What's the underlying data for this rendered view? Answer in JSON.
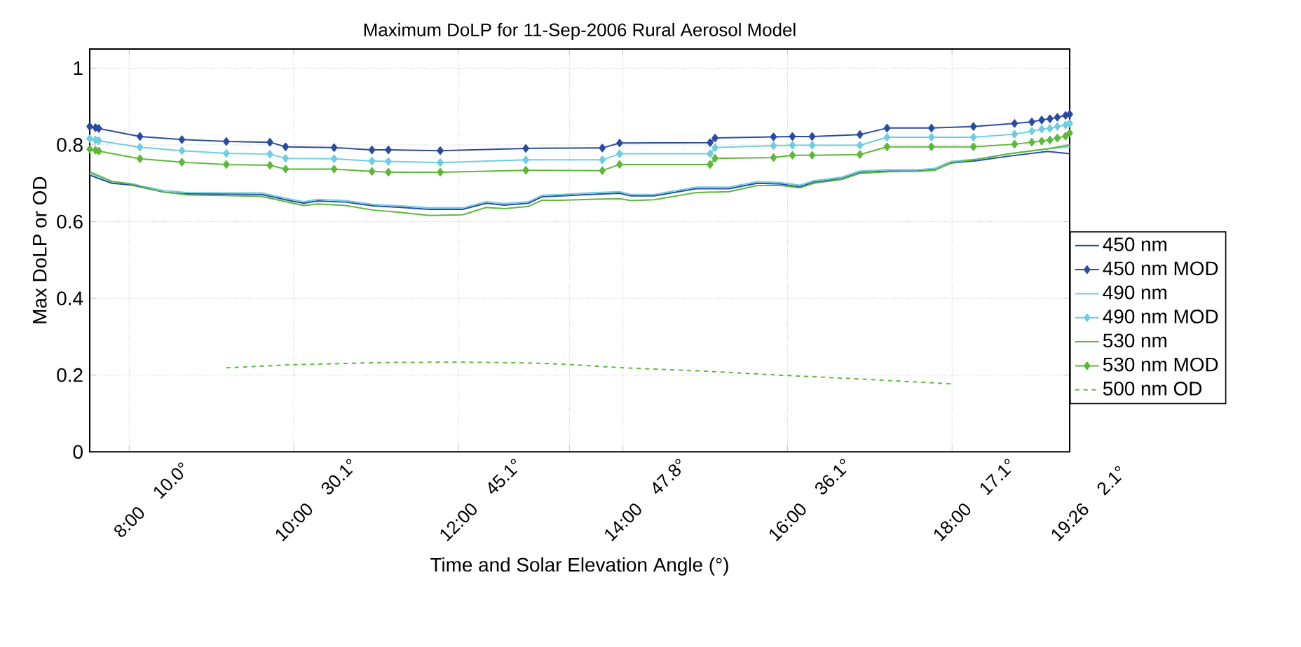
{
  "chart_data": {
    "type": "line",
    "title": "Maximum DoLP for 11-Sep-2006  Rural Aerosol Model",
    "xlabel": "Time and Solar Elevation Angle (°)",
    "ylabel": "Max DoLP or OD",
    "xlim": [
      7.52,
      19.43
    ],
    "ylim": [
      0,
      1.05
    ],
    "xticks": [
      {
        "value": 8,
        "label": "8:00"
      },
      {
        "value": 10,
        "label": "10:00"
      },
      {
        "value": 12,
        "label": "12:00"
      },
      {
        "value": 13.35,
        "label": null
      },
      {
        "value": 14,
        "label": "14:00"
      },
      {
        "value": 16,
        "label": "16:00"
      },
      {
        "value": 18,
        "label": "18:00"
      },
      {
        "value": 19.43,
        "label": "19:26"
      }
    ],
    "annotations": [
      "10.0°",
      "30.1°",
      "45.1°",
      "47.8°",
      "36.1°",
      "17.1°",
      "2.1°"
    ],
    "yticks": [
      0,
      0.2,
      0.4,
      0.6,
      0.8,
      1
    ],
    "grid": true,
    "legend": "right",
    "series": [
      {
        "name": "450 nm",
        "color": "#2b4ba3",
        "x": [
          7.52,
          7.79,
          8.02,
          8.42,
          8.7,
          9.15,
          9.61,
          9.95,
          10.12,
          10.29,
          10.63,
          10.97,
          11.31,
          11.65,
          12.05,
          12.34,
          12.56,
          12.85,
          13.02,
          13.25,
          13.59,
          13.96,
          14.1,
          14.38,
          14.89,
          15.29,
          15.63,
          15.92,
          16.15,
          16.32,
          16.66,
          16.88,
          17.22,
          17.57,
          17.79,
          17.99,
          18.3,
          18.7,
          19.16,
          19.43
        ],
        "values": [
          0.721,
          0.7,
          0.696,
          0.677,
          0.672,
          0.672,
          0.671,
          0.655,
          0.648,
          0.654,
          0.651,
          0.641,
          0.637,
          0.632,
          0.632,
          0.648,
          0.643,
          0.648,
          0.665,
          0.667,
          0.671,
          0.674,
          0.667,
          0.667,
          0.686,
          0.686,
          0.7,
          0.698,
          0.691,
          0.703,
          0.712,
          0.728,
          0.732,
          0.732,
          0.735,
          0.753,
          0.759,
          0.771,
          0.783,
          0.777
        ]
      },
      {
        "name": "450 nm MOD",
        "color": "#2b4ba3",
        "marker": "diamond",
        "x": [
          7.52,
          7.59,
          7.63,
          8.13,
          8.64,
          9.18,
          9.71,
          9.9,
          10.49,
          10.95,
          11.15,
          11.78,
          12.82,
          13.75,
          13.96,
          15.06,
          15.12,
          15.83,
          16.06,
          16.3,
          16.88,
          17.21,
          17.75,
          18.26,
          18.76,
          18.97,
          19.09,
          19.19,
          19.28,
          19.38,
          19.43
        ],
        "values": [
          0.848,
          0.845,
          0.843,
          0.822,
          0.814,
          0.809,
          0.807,
          0.795,
          0.793,
          0.787,
          0.787,
          0.785,
          0.791,
          0.792,
          0.805,
          0.806,
          0.818,
          0.821,
          0.822,
          0.822,
          0.827,
          0.844,
          0.844,
          0.848,
          0.856,
          0.86,
          0.865,
          0.868,
          0.872,
          0.877,
          0.88
        ]
      },
      {
        "name": "490 nm",
        "color": "#6fcde0",
        "x": [
          7.52,
          7.79,
          8.02,
          8.42,
          8.7,
          9.15,
          9.61,
          9.95,
          10.12,
          10.29,
          10.63,
          10.97,
          11.31,
          11.65,
          12.05,
          12.34,
          12.56,
          12.85,
          13.02,
          13.25,
          13.59,
          13.96,
          14.1,
          14.38,
          14.89,
          15.29,
          15.63,
          15.92,
          16.15,
          16.32,
          16.66,
          16.88,
          17.22,
          17.57,
          17.79,
          17.99,
          18.3,
          18.7,
          19.16,
          19.43
        ],
        "values": [
          0.726,
          0.704,
          0.699,
          0.681,
          0.676,
          0.675,
          0.675,
          0.659,
          0.652,
          0.658,
          0.655,
          0.645,
          0.641,
          0.636,
          0.636,
          0.652,
          0.647,
          0.652,
          0.669,
          0.671,
          0.675,
          0.678,
          0.671,
          0.671,
          0.69,
          0.69,
          0.704,
          0.702,
          0.695,
          0.707,
          0.716,
          0.732,
          0.735,
          0.735,
          0.739,
          0.757,
          0.763,
          0.777,
          0.79,
          0.795
        ]
      },
      {
        "name": "490 nm MOD",
        "color": "#6fcde0",
        "marker": "diamond",
        "x": [
          7.52,
          7.59,
          7.63,
          8.13,
          8.64,
          9.18,
          9.71,
          9.9,
          10.49,
          10.95,
          11.15,
          11.78,
          12.82,
          13.75,
          13.96,
          15.06,
          15.12,
          15.83,
          16.06,
          16.3,
          16.88,
          17.21,
          17.75,
          18.26,
          18.76,
          18.97,
          19.09,
          19.19,
          19.28,
          19.38,
          19.43
        ],
        "values": [
          0.816,
          0.813,
          0.811,
          0.794,
          0.785,
          0.778,
          0.776,
          0.765,
          0.764,
          0.758,
          0.757,
          0.754,
          0.761,
          0.761,
          0.777,
          0.777,
          0.793,
          0.798,
          0.799,
          0.799,
          0.799,
          0.82,
          0.82,
          0.82,
          0.828,
          0.836,
          0.841,
          0.843,
          0.848,
          0.852,
          0.856
        ]
      },
      {
        "name": "530 nm",
        "color": "#5db83b",
        "x": [
          7.52,
          7.79,
          8.02,
          8.42,
          8.7,
          9.15,
          9.61,
          9.95,
          10.12,
          10.29,
          10.63,
          10.97,
          11.31,
          11.65,
          12.05,
          12.34,
          12.56,
          12.85,
          13.02,
          13.25,
          13.59,
          13.96,
          14.1,
          14.38,
          14.89,
          15.29,
          15.63,
          15.92,
          16.15,
          16.32,
          16.66,
          16.88,
          17.22,
          17.57,
          17.79,
          17.99,
          18.3,
          18.7,
          19.16,
          19.43
        ],
        "values": [
          0.73,
          0.705,
          0.698,
          0.677,
          0.67,
          0.668,
          0.666,
          0.65,
          0.642,
          0.646,
          0.642,
          0.63,
          0.624,
          0.616,
          0.618,
          0.637,
          0.634,
          0.64,
          0.656,
          0.656,
          0.658,
          0.66,
          0.655,
          0.657,
          0.676,
          0.678,
          0.694,
          0.694,
          0.688,
          0.7,
          0.71,
          0.726,
          0.73,
          0.731,
          0.734,
          0.754,
          0.762,
          0.777,
          0.79,
          0.8
        ]
      },
      {
        "name": "530 nm MOD",
        "color": "#5db83b",
        "marker": "diamond",
        "x": [
          7.52,
          7.59,
          7.63,
          8.13,
          8.64,
          9.18,
          9.71,
          9.9,
          10.49,
          10.95,
          11.15,
          11.78,
          12.82,
          13.75,
          13.96,
          15.06,
          15.12,
          15.83,
          16.06,
          16.3,
          16.88,
          17.21,
          17.75,
          18.26,
          18.76,
          18.97,
          19.09,
          19.19,
          19.28,
          19.38,
          19.43
        ],
        "values": [
          0.789,
          0.786,
          0.784,
          0.764,
          0.755,
          0.749,
          0.747,
          0.737,
          0.737,
          0.731,
          0.729,
          0.729,
          0.734,
          0.733,
          0.749,
          0.749,
          0.765,
          0.767,
          0.773,
          0.773,
          0.775,
          0.795,
          0.795,
          0.795,
          0.802,
          0.807,
          0.81,
          0.813,
          0.818,
          0.823,
          0.831
        ]
      },
      {
        "name": "500 nm OD",
        "color": "#5db83b",
        "line_style": "dashed",
        "x": [
          9.18,
          9.95,
          11.09,
          12.0,
          12.79,
          13.25,
          14.01,
          14.95,
          16.0,
          16.88,
          18.02
        ],
        "values": [
          0.219,
          0.227,
          0.233,
          0.234,
          0.232,
          0.229,
          0.219,
          0.211,
          0.199,
          0.19,
          0.177
        ]
      }
    ]
  }
}
